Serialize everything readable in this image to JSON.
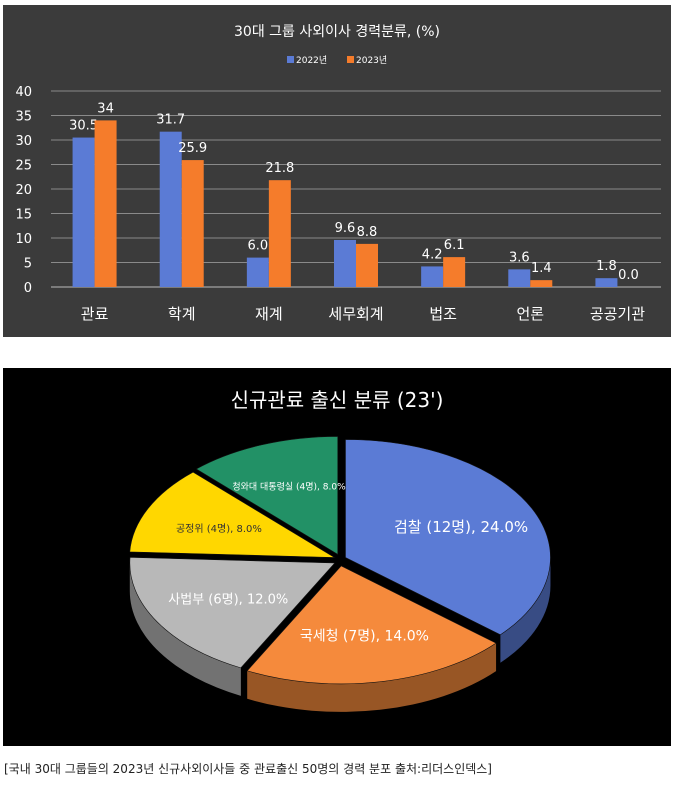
{
  "chart_data": [
    {
      "type": "bar",
      "title": "30대 그룹 사외이사 경력분류, (%)",
      "categories": [
        "관료",
        "학계",
        "재계",
        "세무회계",
        "법조",
        "언론",
        "공공기관"
      ],
      "series": [
        {
          "name": "2022년",
          "color": "#5b7bd5",
          "values": [
            30.5,
            31.7,
            6.0,
            9.6,
            4.2,
            3.6,
            1.8
          ],
          "labels": [
            "30.5",
            "31.7",
            "6.0",
            "9.6",
            "4.2",
            "3.6",
            "1.8"
          ]
        },
        {
          "name": "2023년",
          "color": "#f57c2b",
          "values": [
            34,
            25.9,
            21.8,
            8.8,
            6.1,
            1.4,
            0.0
          ],
          "labels": [
            "34",
            "25.9",
            "21.8",
            "8.8",
            "6.1",
            "1.4",
            "0.0"
          ]
        }
      ],
      "ylim": [
        0,
        40
      ],
      "yticks": [
        "0",
        "5",
        "10",
        "15",
        "20",
        "25",
        "30",
        "35",
        "40"
      ],
      "grid": true,
      "legend": "top"
    },
    {
      "type": "pie",
      "title": "신규관료 출신 분류 (23')",
      "slices": [
        {
          "label": "검찰 (12명), 24.0%",
          "value": 24.0,
          "color": "#5b7bd5"
        },
        {
          "label": "국세청 (7명), 14.0%",
          "value": 14.0,
          "color": "#f58a3c"
        },
        {
          "label": "사법부 (6명), 12.0%",
          "value": 12.0,
          "color": "#b8b8b8"
        },
        {
          "label": "공정위 (4명), 8.0%",
          "value": 8.0,
          "color": "#ffd700"
        },
        {
          "label": "청와대 대통령실 (4명), 8.0%",
          "value": 8.0,
          "color": "#229166"
        }
      ]
    }
  ],
  "caption": "[국내 30대 그룹들의 2023년 신규사외이사들 중 관료출신 50명의 경력 분포  출처:리더스인덱스]"
}
